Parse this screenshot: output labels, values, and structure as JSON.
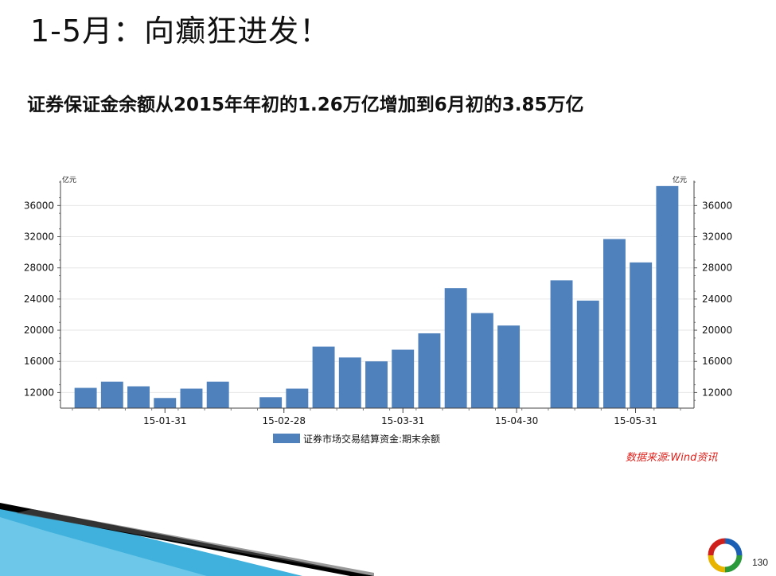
{
  "slide": {
    "title": "1-5月：向癫狂进发！",
    "subtitle": "证券保证金余额从2015年年初的1.26万亿增加到6月初的3.85万亿",
    "source": "数据来源:Wind资讯",
    "page_number": "130"
  },
  "colors": {
    "bar": "#4f81bd",
    "source_text": "#e0201b",
    "deco_blue": "#1fa3d6",
    "deco_black": "#000000"
  },
  "icons": [
    "colorful-ring-logo-icon"
  ],
  "chart_data": {
    "type": "bar",
    "title": "",
    "unit_left": "亿元",
    "unit_right": "亿元",
    "ylim": [
      10000,
      39200
    ],
    "yticks": [
      12000,
      16000,
      20000,
      24000,
      28000,
      32000,
      36000
    ],
    "ytick_labels": [
      "12000",
      "16000",
      "20000",
      "24000",
      "28000",
      "32000",
      "36000"
    ],
    "x_tick_labels": [
      {
        "label": "15-01-31",
        "after_index": 3.5
      },
      {
        "label": "15-02-28",
        "after_index": 8
      },
      {
        "label": "15-03-31",
        "after_index": 12.5
      },
      {
        "label": "15-04-30",
        "after_index": 16.8
      },
      {
        "label": "15-05-31",
        "after_index": 21.3
      }
    ],
    "grid": true,
    "legend_position": "bottom-center",
    "series": [
      {
        "name": "证券市场交易结算资金:期末余额",
        "values": [
          12600,
          13400,
          12800,
          11300,
          12500,
          13400,
          null,
          11400,
          12500,
          17900,
          16500,
          16000,
          17500,
          19600,
          25400,
          22200,
          20600,
          null,
          26400,
          23800,
          31700,
          28700,
          38500
        ]
      }
    ]
  }
}
